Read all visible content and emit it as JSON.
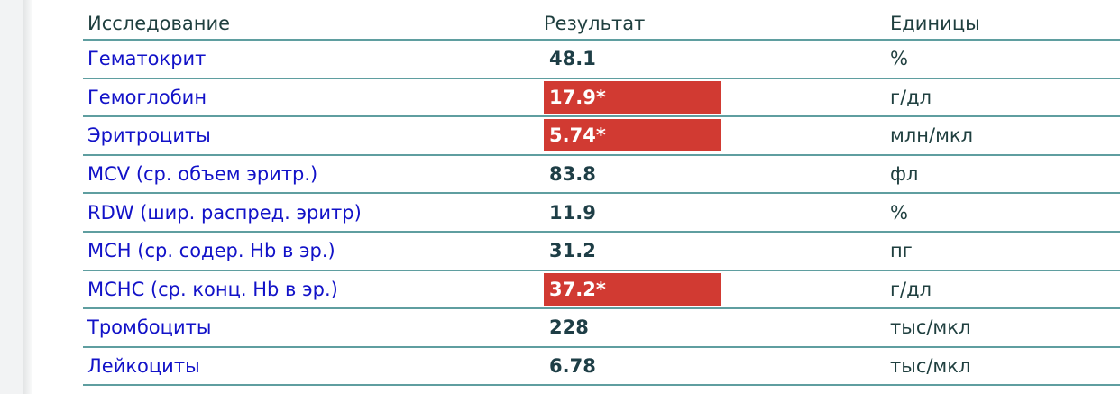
{
  "colors": {
    "link": "#1212c8",
    "flag": "#d13a32",
    "divider": "#5f9ea0"
  },
  "header": {
    "test": "Исследование",
    "result": "Результат",
    "units": "Единицы"
  },
  "rows": [
    {
      "test": "Гематокрит",
      "result": "48.1",
      "units": "%",
      "flagged": false
    },
    {
      "test": "Гемоглобин",
      "result": "17.9*",
      "units": "г/дл",
      "flagged": true
    },
    {
      "test": "Эритроциты",
      "result": "5.74*",
      "units": "млн/мкл",
      "flagged": true
    },
    {
      "test": "MCV (ср. объем эритр.)",
      "result": "83.8",
      "units": "фл",
      "flagged": false
    },
    {
      "test": "RDW (шир. распред. эритр)",
      "result": "11.9",
      "units": "%",
      "flagged": false
    },
    {
      "test": "MCH (ср. содер. Hb в эр.)",
      "result": "31.2",
      "units": "пг",
      "flagged": false
    },
    {
      "test": "MCHC (ср. конц. Hb в эр.)",
      "result": "37.2*",
      "units": "г/дл",
      "flagged": true
    },
    {
      "test": "Тромбоциты",
      "result": "228",
      "units": "тыс/мкл",
      "flagged": false
    },
    {
      "test": "Лейкоциты",
      "result": "6.78",
      "units": "тыс/мкл",
      "flagged": false
    }
  ]
}
